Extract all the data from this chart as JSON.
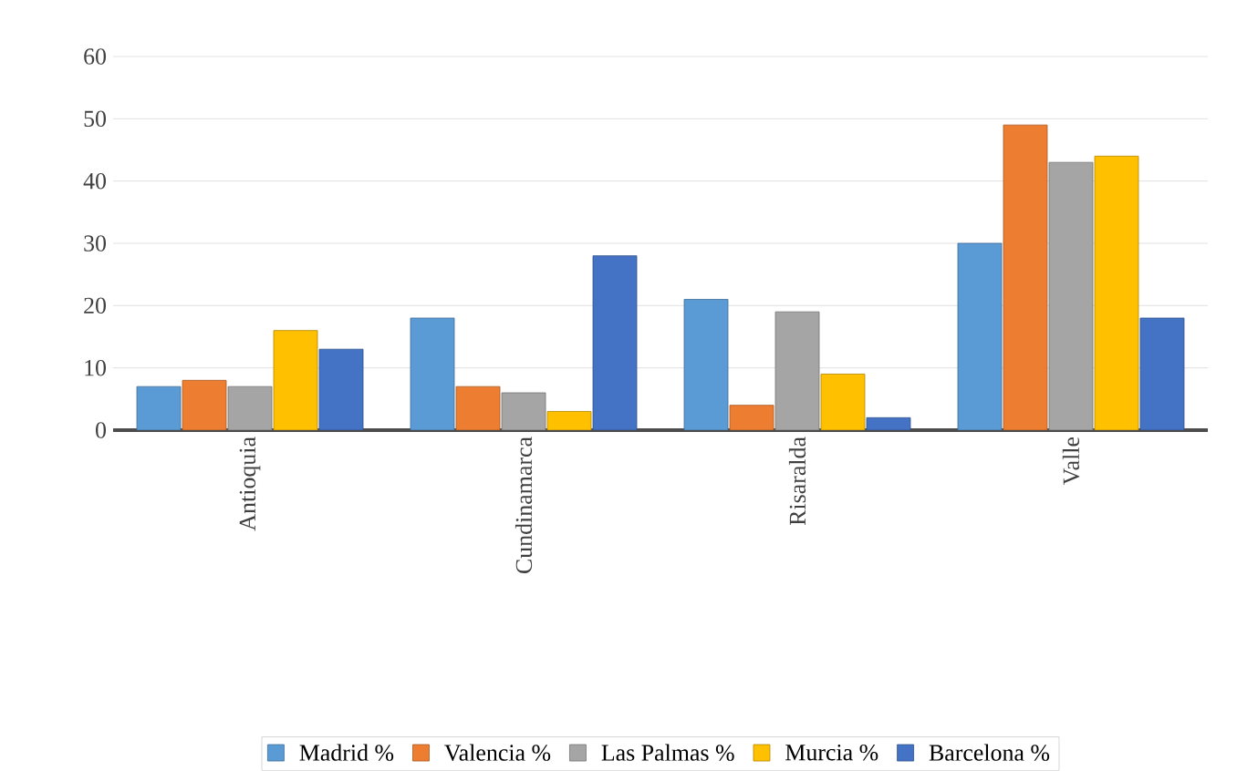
{
  "chart_data": {
    "type": "bar",
    "categories": [
      "Antioquia",
      "Cundinamarca",
      "Risaralda",
      "Valle"
    ],
    "series": [
      {
        "name": "Madrid %",
        "color": "#5b9bd5",
        "values": [
          7,
          18,
          21,
          30
        ]
      },
      {
        "name": "Valencia %",
        "color": "#ed7d31",
        "values": [
          8,
          7,
          4,
          49
        ]
      },
      {
        "name": "Las Palmas %",
        "color": "#a5a5a5",
        "values": [
          7,
          6,
          19,
          43
        ]
      },
      {
        "name": "Murcia %",
        "color": "#ffc000",
        "values": [
          16,
          3,
          9,
          44
        ]
      },
      {
        "name": "Barcelona %",
        "color": "#4472c4",
        "values": [
          13,
          28,
          2,
          18
        ]
      }
    ],
    "ylim": [
      0,
      60
    ],
    "yticks": [
      0,
      10,
      20,
      30,
      40,
      50,
      60
    ],
    "grid": "y",
    "legend": "bottom"
  }
}
